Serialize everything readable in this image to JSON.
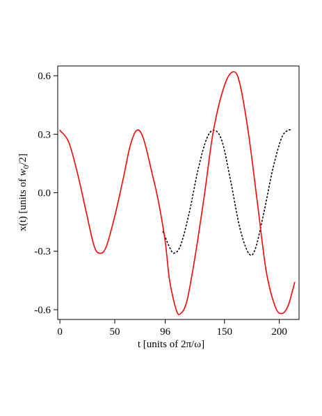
{
  "chart_data": {
    "type": "line",
    "xlabel": "t [units of 2π/ω]",
    "ylabel": {
      "prefix": "x(t) [units of ",
      "var": "w",
      "sub": "0",
      "suffix": "/2]"
    },
    "xlim": [
      -2,
      218
    ],
    "ylim": [
      -0.65,
      0.65
    ],
    "xticks": [
      {
        "value": 0,
        "label": "0"
      },
      {
        "value": 50,
        "label": "50"
      },
      {
        "value": 96,
        "label": "96"
      },
      {
        "value": 150,
        "label": "150"
      },
      {
        "value": 200,
        "label": "200"
      }
    ],
    "yticks": [
      {
        "value": 0.6,
        "label": "0.6"
      },
      {
        "value": 0.3,
        "label": "0.3"
      },
      {
        "value": 0.0,
        "label": "0.0"
      },
      {
        "value": -0.3,
        "label": "-0.3"
      },
      {
        "value": -0.6,
        "label": "-0.6"
      }
    ],
    "grid": false,
    "series": [
      {
        "style": "solid",
        "color": "#ff0000",
        "points": [
          [
            0,
            0.32
          ],
          [
            8,
            0.26
          ],
          [
            16,
            0.1
          ],
          [
            24,
            -0.1
          ],
          [
            31,
            -0.27
          ],
          [
            36,
            -0.31
          ],
          [
            42,
            -0.28
          ],
          [
            50,
            -0.12
          ],
          [
            58,
            0.08
          ],
          [
            64,
            0.24
          ],
          [
            70,
            0.32
          ],
          [
            76,
            0.28
          ],
          [
            84,
            0.1
          ],
          [
            90,
            -0.05
          ],
          [
            96,
            -0.25
          ],
          [
            100,
            -0.45
          ],
          [
            106,
            -0.6
          ],
          [
            110,
            -0.62
          ],
          [
            116,
            -0.55
          ],
          [
            124,
            -0.3
          ],
          [
            132,
            0.0
          ],
          [
            140,
            0.32
          ],
          [
            150,
            0.55
          ],
          [
            158,
            0.62
          ],
          [
            164,
            0.56
          ],
          [
            172,
            0.3
          ],
          [
            180,
            -0.05
          ],
          [
            188,
            -0.4
          ],
          [
            196,
            -0.58
          ],
          [
            202,
            -0.62
          ],
          [
            208,
            -0.58
          ],
          [
            214,
            -0.46
          ]
        ]
      },
      {
        "style": "dotted",
        "color": "#000000",
        "points": [
          [
            94,
            -0.2
          ],
          [
            100,
            -0.28
          ],
          [
            104,
            -0.31
          ],
          [
            110,
            -0.27
          ],
          [
            118,
            -0.1
          ],
          [
            126,
            0.12
          ],
          [
            134,
            0.28
          ],
          [
            141,
            0.32
          ],
          [
            148,
            0.26
          ],
          [
            156,
            0.05
          ],
          [
            164,
            -0.18
          ],
          [
            172,
            -0.31
          ],
          [
            178,
            -0.29
          ],
          [
            186,
            -0.1
          ],
          [
            194,
            0.12
          ],
          [
            202,
            0.28
          ],
          [
            208,
            0.32
          ],
          [
            212,
            0.32
          ]
        ]
      }
    ]
  }
}
